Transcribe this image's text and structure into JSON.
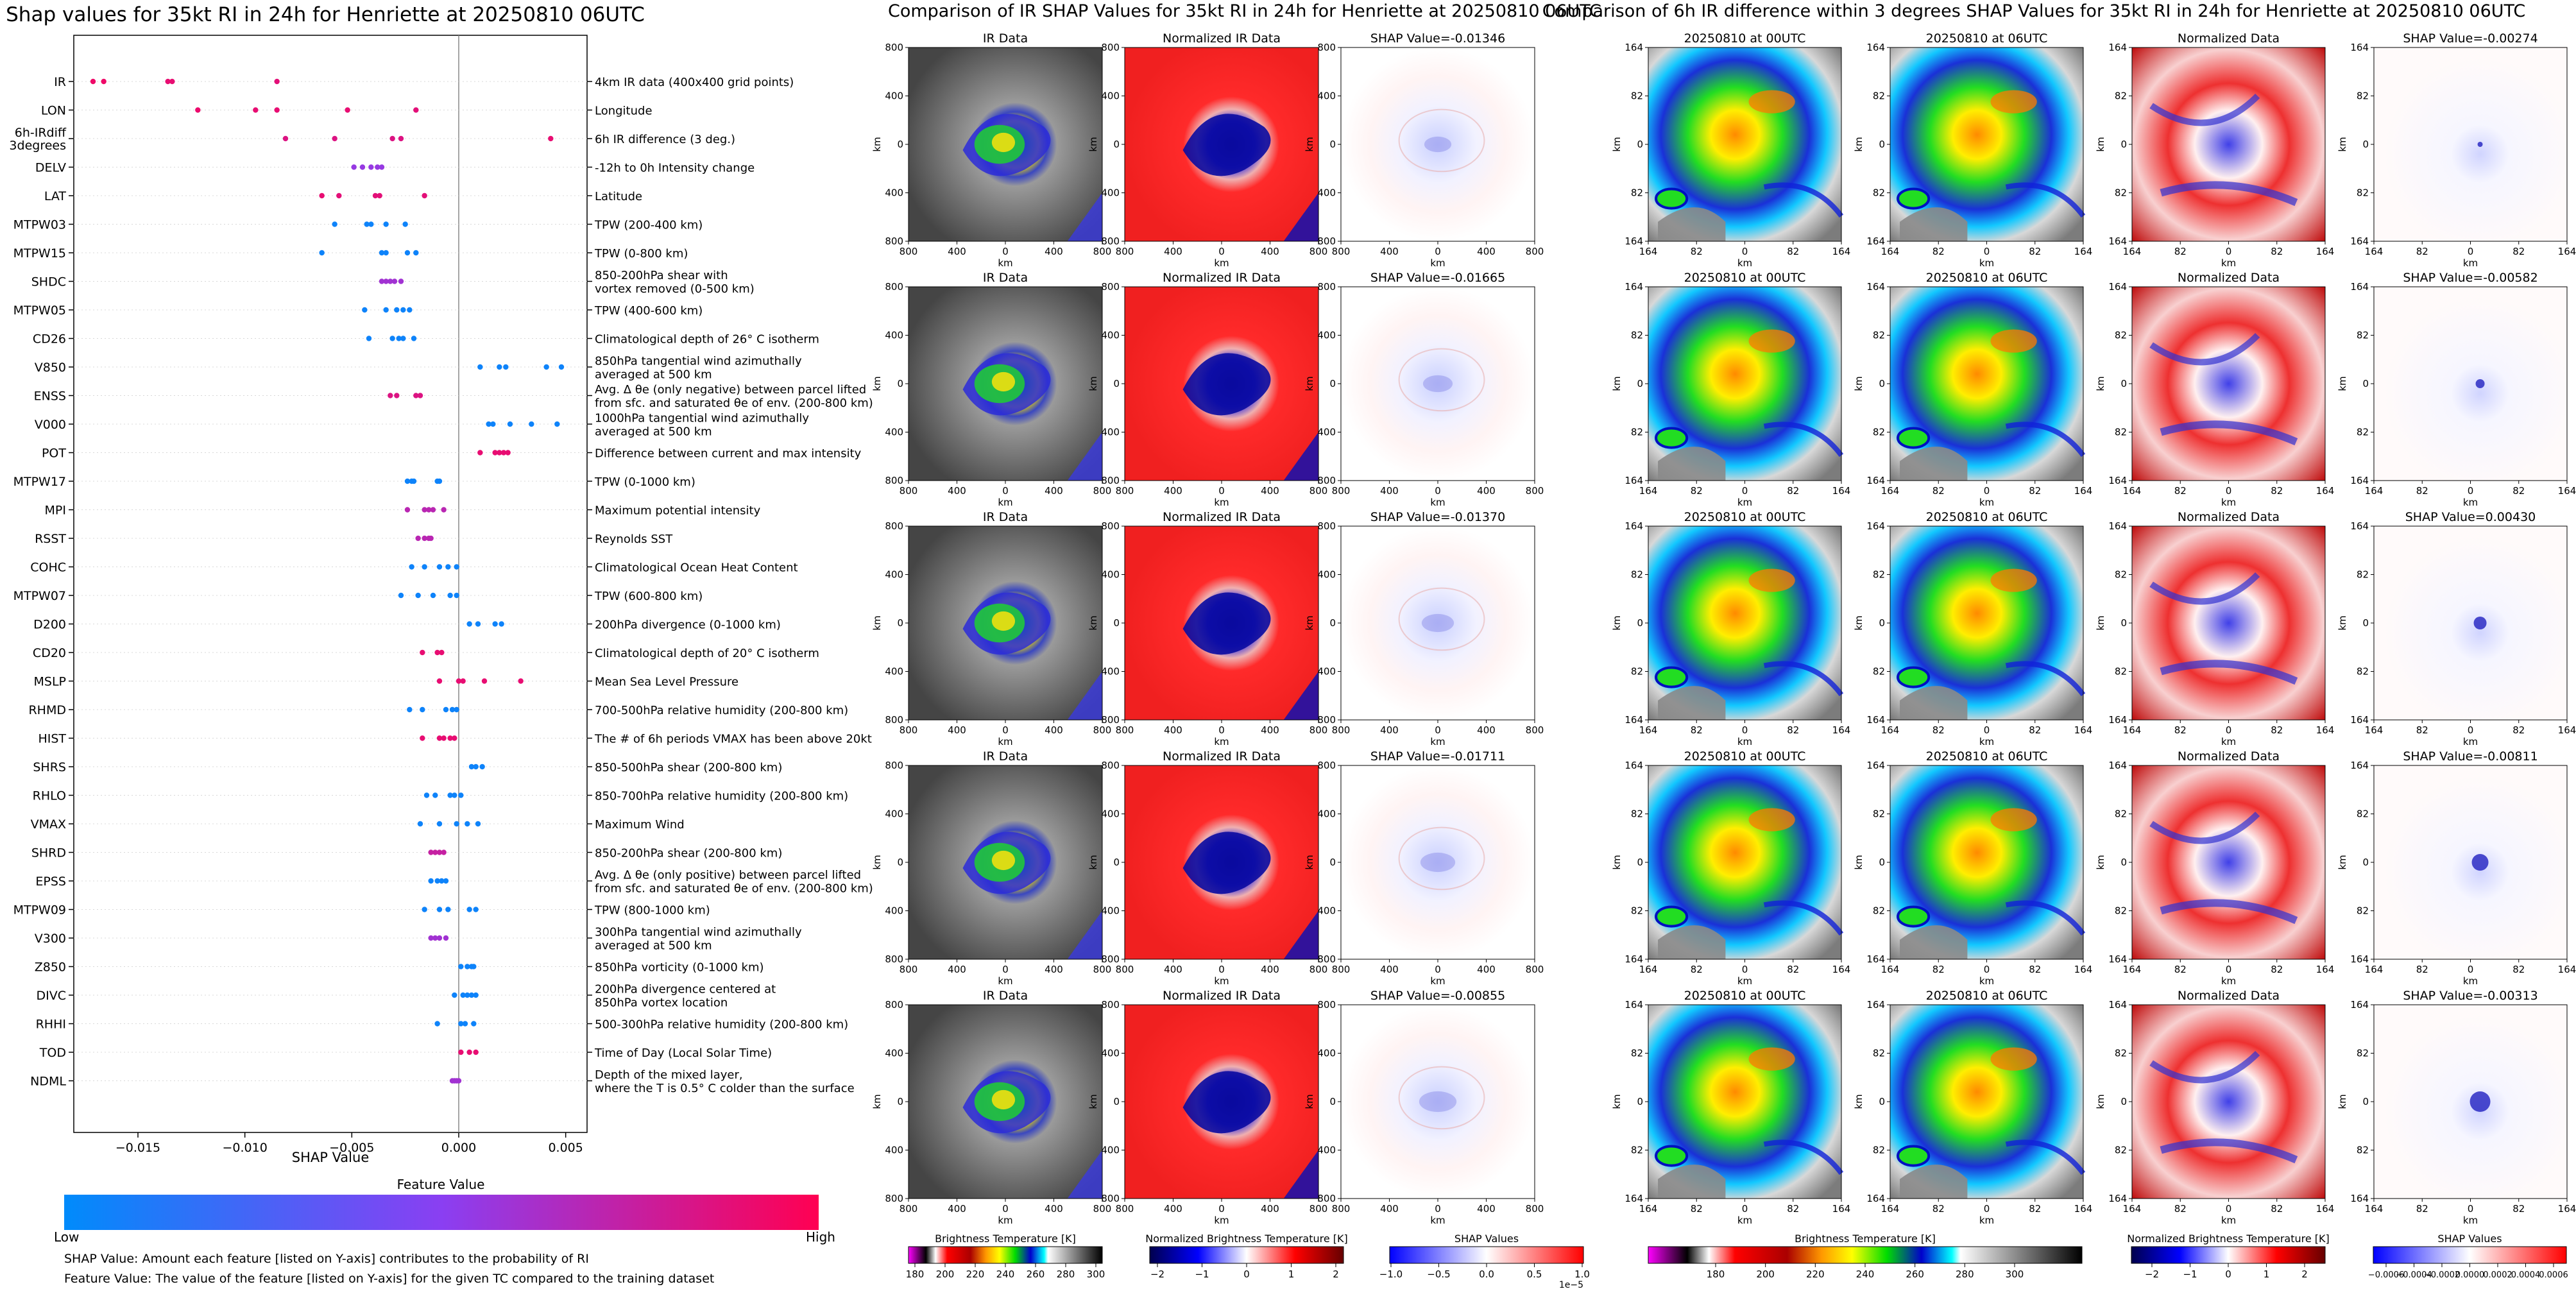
{
  "shap_summary": {
    "title": "Shap values for 35kt RI in 24h for Henriette at 20250810 06UTC",
    "xlabel": "SHAP Value",
    "colorbar_title": "Feature Value",
    "colorbar_low": "Low",
    "colorbar_high": "High",
    "footnote1": "SHAP Value: Amount each feature [listed on Y-axis] contributes to the probability of RI",
    "footnote2": "Feature Value: The value of the feature [listed on Y-axis] for the given TC compared to the training dataset"
  },
  "ir_panel": {
    "title": "Comparison of IR SHAP Values for 35kt RI in 24h for Henriette at 20250810 06UTC",
    "col_titles": [
      "IR Data",
      "Normalized IR Data"
    ],
    "shap_titles": [
      "SHAP Value=-0.01346",
      "SHAP Value=-0.01665",
      "SHAP Value=-0.01370",
      "SHAP Value=-0.01711",
      "SHAP Value=-0.00855"
    ],
    "x_ticks": [
      "800",
      "400",
      "0",
      "400",
      "800"
    ],
    "y_ticks": [
      "800",
      "400",
      "0",
      "400",
      "800"
    ],
    "axis_label": "km",
    "colorbars": [
      {
        "label": "Brightness Temperature [K]",
        "ticks": [
          "180",
          "200",
          "220",
          "240",
          "260",
          "280",
          "300"
        ]
      },
      {
        "label": "Normalized Brightness Temperature [K]",
        "ticks": [
          "−2",
          "−1",
          "0",
          "1",
          "2"
        ]
      },
      {
        "label": "SHAP Values",
        "ticks": [
          "−1.0",
          "−0.5",
          "0.0",
          "0.5",
          "1.0"
        ],
        "exponent": "1e−5"
      }
    ]
  },
  "diff_panel": {
    "title": "Comparison of 6h IR difference within 3 degrees SHAP Values for 35kt RI in 24h for Henriette at 20250810 06UTC",
    "col_titles": [
      "20250810 at 00UTC",
      "20250810 at 06UTC",
      "Normalized Data"
    ],
    "shap_titles": [
      "SHAP Value=-0.00274",
      "SHAP Value=-0.00582",
      "SHAP Value=0.00430",
      "SHAP Value=-0.00811",
      "SHAP Value=-0.00313"
    ],
    "x_ticks": [
      "164",
      "82",
      "0",
      "82",
      "164"
    ],
    "y_ticks": [
      "164",
      "82",
      "0",
      "82",
      "164"
    ],
    "axis_label": "km",
    "colorbars": [
      {
        "label": "Brightness Temperature [K]",
        "ticks": [
          "180",
          "200",
          "220",
          "240",
          "260",
          "280",
          "300"
        ]
      },
      {
        "label": "Normalized Brightness Temperature [K]",
        "ticks": [
          "−2",
          "−1",
          "0",
          "1",
          "2"
        ]
      },
      {
        "label": "SHAP Values",
        "ticks": [
          "−0.0006",
          "−0.0004",
          "−0.0002",
          "0.0000",
          "0.0002",
          "0.0004",
          "0.0006"
        ]
      }
    ]
  },
  "chart_data": {
    "type": "scatter",
    "subtype": "shap-beeswarm",
    "title": "Shap values for 35kt RI in 24h for Henriette at 20250810 06UTC",
    "xlabel": "SHAP Value",
    "xlim": [
      -0.018,
      0.006
    ],
    "xticks": [
      -0.015,
      -0.01,
      -0.005,
      0.0,
      0.005
    ],
    "xtick_labels": [
      "−0.015",
      "−0.010",
      "−0.005",
      "0.000",
      "0.005"
    ],
    "features": [
      {
        "name": "IR",
        "desc": [
          "4km IR data (400x400 grid points)"
        ],
        "points": [
          [
            -0.0171,
            0.93
          ],
          [
            -0.0166,
            0.93
          ],
          [
            -0.0136,
            0.9
          ],
          [
            -0.0134,
            0.9
          ],
          [
            -0.0085,
            0.88
          ]
        ]
      },
      {
        "name": "LON",
        "desc": [
          "Longitude"
        ],
        "points": [
          [
            -0.0122,
            0.92
          ],
          [
            -0.0095,
            0.9
          ],
          [
            -0.0085,
            0.9
          ],
          [
            -0.0052,
            0.9
          ],
          [
            -0.002,
            0.88
          ]
        ]
      },
      {
        "name": "6h-IRdiff\n3degrees",
        "desc": [
          "6h IR difference (3 deg.)"
        ],
        "points": [
          [
            -0.0081,
            0.85
          ],
          [
            -0.0058,
            0.85
          ],
          [
            -0.0031,
            0.85
          ],
          [
            -0.0027,
            0.85
          ],
          [
            0.0043,
            0.9
          ]
        ]
      },
      {
        "name": "DELV",
        "desc": [
          "-12h to 0h Intensity change"
        ],
        "points": [
          [
            -0.0049,
            0.55
          ],
          [
            -0.0045,
            0.55
          ],
          [
            -0.0041,
            0.55
          ],
          [
            -0.0038,
            0.55
          ],
          [
            -0.0036,
            0.55
          ]
        ]
      },
      {
        "name": "LAT",
        "desc": [
          "Latitude"
        ],
        "points": [
          [
            -0.0064,
            0.9
          ],
          [
            -0.0056,
            0.88
          ],
          [
            -0.0039,
            0.88
          ],
          [
            -0.0037,
            0.88
          ],
          [
            -0.0016,
            0.88
          ]
        ]
      },
      {
        "name": "MTPW03",
        "desc": [
          "TPW (200-400 km)"
        ],
        "points": [
          [
            -0.0058,
            0.05
          ],
          [
            -0.0043,
            0.05
          ],
          [
            -0.0041,
            0.05
          ],
          [
            -0.0034,
            0.05
          ],
          [
            -0.0025,
            0.05
          ]
        ]
      },
      {
        "name": "MTPW15",
        "desc": [
          "TPW (0-800 km)"
        ],
        "points": [
          [
            -0.0064,
            0.05
          ],
          [
            -0.0036,
            0.05
          ],
          [
            -0.0034,
            0.05
          ],
          [
            -0.0024,
            0.05
          ],
          [
            -0.002,
            0.05
          ]
        ]
      },
      {
        "name": "SHDC",
        "desc": [
          "850-200hPa shear with",
          "vortex removed (0-500 km)"
        ],
        "points": [
          [
            -0.0036,
            0.6
          ],
          [
            -0.0034,
            0.6
          ],
          [
            -0.0032,
            0.6
          ],
          [
            -0.003,
            0.6
          ],
          [
            -0.0027,
            0.6
          ]
        ]
      },
      {
        "name": "MTPW05",
        "desc": [
          "TPW (400-600 km)"
        ],
        "points": [
          [
            -0.0044,
            0.05
          ],
          [
            -0.0034,
            0.05
          ],
          [
            -0.0029,
            0.05
          ],
          [
            -0.0026,
            0.05
          ],
          [
            -0.0023,
            0.05
          ]
        ]
      },
      {
        "name": "CD26",
        "desc": [
          "Climatological depth of 26° C isotherm"
        ],
        "points": [
          [
            -0.0042,
            0.05
          ],
          [
            -0.0031,
            0.05
          ],
          [
            -0.0028,
            0.05
          ],
          [
            -0.0026,
            0.05
          ],
          [
            -0.0021,
            0.05
          ]
        ]
      },
      {
        "name": "V850",
        "desc": [
          "850hPa tangential wind azimuthally",
          "averaged at 500 km"
        ],
        "points": [
          [
            0.001,
            0.05
          ],
          [
            0.0019,
            0.05
          ],
          [
            0.0022,
            0.05
          ],
          [
            0.0041,
            0.05
          ],
          [
            0.0048,
            0.05
          ]
        ]
      },
      {
        "name": "ENSS",
        "desc": [
          "Avg. Δ θe (only negative) between parcel lifted",
          "from sfc. and saturated θe of env. (200-800 km)"
        ],
        "points": [
          [
            -0.0032,
            0.85
          ],
          [
            -0.0029,
            0.85
          ],
          [
            -0.002,
            0.85
          ],
          [
            -0.0018,
            0.85
          ]
        ]
      },
      {
        "name": "V000",
        "desc": [
          "1000hPa tangential wind azimuthally",
          "averaged at 500 km"
        ],
        "points": [
          [
            0.0014,
            0.05
          ],
          [
            0.0016,
            0.05
          ],
          [
            0.0024,
            0.05
          ],
          [
            0.0034,
            0.05
          ],
          [
            0.0046,
            0.05
          ]
        ]
      },
      {
        "name": "POT",
        "desc": [
          "Difference between current and max intensity"
        ],
        "points": [
          [
            0.001,
            0.9
          ],
          [
            0.0017,
            0.9
          ],
          [
            0.0019,
            0.9
          ],
          [
            0.0021,
            0.9
          ],
          [
            0.0023,
            0.9
          ]
        ]
      },
      {
        "name": "MTPW17",
        "desc": [
          "TPW (0-1000 km)"
        ],
        "points": [
          [
            -0.0024,
            0.05
          ],
          [
            -0.0022,
            0.05
          ],
          [
            -0.0021,
            0.05
          ],
          [
            -0.001,
            0.05
          ],
          [
            -0.0009,
            0.05
          ]
        ]
      },
      {
        "name": "MPI",
        "desc": [
          "Maximum potential intensity"
        ],
        "points": [
          [
            -0.0024,
            0.7
          ],
          [
            -0.0016,
            0.7
          ],
          [
            -0.0014,
            0.7
          ],
          [
            -0.0012,
            0.7
          ],
          [
            -0.0007,
            0.7
          ]
        ]
      },
      {
        "name": "RSST",
        "desc": [
          "Reynolds SST"
        ],
        "points": [
          [
            -0.0019,
            0.7
          ],
          [
            -0.0016,
            0.7
          ],
          [
            -0.0014,
            0.7
          ],
          [
            -0.0013,
            0.7
          ]
        ]
      },
      {
        "name": "COHC",
        "desc": [
          "Climatological Ocean Heat Content"
        ],
        "points": [
          [
            -0.0022,
            0.05
          ],
          [
            -0.0016,
            0.05
          ],
          [
            -0.0009,
            0.05
          ],
          [
            -0.0005,
            0.05
          ],
          [
            -0.0001,
            0.05
          ]
        ]
      },
      {
        "name": "MTPW07",
        "desc": [
          "TPW (600-800 km)"
        ],
        "points": [
          [
            -0.0027,
            0.05
          ],
          [
            -0.0019,
            0.05
          ],
          [
            -0.0012,
            0.05
          ],
          [
            -0.0004,
            0.05
          ],
          [
            -0.0001,
            0.05
          ]
        ]
      },
      {
        "name": "D200",
        "desc": [
          "200hPa divergence (0-1000 km)"
        ],
        "points": [
          [
            0.0005,
            0.05
          ],
          [
            0.0009,
            0.05
          ],
          [
            0.0017,
            0.05
          ],
          [
            0.002,
            0.05
          ]
        ]
      },
      {
        "name": "CD20",
        "desc": [
          "Climatological depth of 20° C isotherm"
        ],
        "points": [
          [
            -0.0017,
            0.9
          ],
          [
            -0.001,
            0.9
          ],
          [
            -0.0008,
            0.9
          ]
        ]
      },
      {
        "name": "MSLP",
        "desc": [
          "Mean Sea Level Pressure"
        ],
        "points": [
          [
            -0.0009,
            0.9
          ],
          [
            0.0,
            0.9
          ],
          [
            0.0002,
            0.9
          ],
          [
            0.0012,
            0.9
          ],
          [
            0.0029,
            0.9
          ]
        ]
      },
      {
        "name": "RHMD",
        "desc": [
          "700-500hPa relative humidity (200-800 km)"
        ],
        "points": [
          [
            -0.0023,
            0.05
          ],
          [
            -0.0017,
            0.05
          ],
          [
            -0.0006,
            0.05
          ],
          [
            -0.0003,
            0.05
          ],
          [
            -0.0001,
            0.05
          ]
        ]
      },
      {
        "name": "HIST",
        "desc": [
          "The # of 6h periods VMAX has been above 20kt"
        ],
        "points": [
          [
            -0.0017,
            0.9
          ],
          [
            -0.0009,
            0.9
          ],
          [
            -0.0007,
            0.9
          ],
          [
            -0.0004,
            0.9
          ],
          [
            -0.0002,
            0.9
          ]
        ]
      },
      {
        "name": "SHRS",
        "desc": [
          "850-500hPa shear (200-800 km)"
        ],
        "points": [
          [
            0.0006,
            0.05
          ],
          [
            0.0008,
            0.05
          ],
          [
            0.0011,
            0.05
          ]
        ]
      },
      {
        "name": "RHLO",
        "desc": [
          "850-700hPa relative humidity (200-800 km)"
        ],
        "points": [
          [
            -0.0015,
            0.05
          ],
          [
            -0.0011,
            0.05
          ],
          [
            -0.0004,
            0.05
          ],
          [
            -0.0002,
            0.05
          ],
          [
            0.0001,
            0.05
          ]
        ]
      },
      {
        "name": "VMAX",
        "desc": [
          "Maximum Wind"
        ],
        "points": [
          [
            -0.0018,
            0.05
          ],
          [
            -0.0009,
            0.05
          ],
          [
            -0.0001,
            0.05
          ],
          [
            0.0004,
            0.05
          ],
          [
            0.0009,
            0.05
          ]
        ]
      },
      {
        "name": "SHRD",
        "desc": [
          "850-200hPa shear (200-800 km)"
        ],
        "points": [
          [
            -0.0013,
            0.75
          ],
          [
            -0.0011,
            0.75
          ],
          [
            -0.0009,
            0.75
          ],
          [
            -0.0007,
            0.75
          ]
        ]
      },
      {
        "name": "EPSS",
        "desc": [
          "Avg. Δ θe (only positive) between parcel lifted",
          "from sfc. and saturated θe of env. (200-800 km)"
        ],
        "points": [
          [
            -0.0013,
            0.05
          ],
          [
            -0.001,
            0.05
          ],
          [
            -0.0008,
            0.05
          ],
          [
            -0.0006,
            0.05
          ]
        ]
      },
      {
        "name": "MTPW09",
        "desc": [
          "TPW (800-1000 km)"
        ],
        "points": [
          [
            -0.0016,
            0.05
          ],
          [
            -0.0009,
            0.05
          ],
          [
            -0.0005,
            0.05
          ],
          [
            0.0005,
            0.05
          ],
          [
            0.0008,
            0.05
          ]
        ]
      },
      {
        "name": "V300",
        "desc": [
          "300hPa tangential wind azimuthally",
          "averaged at 500 km"
        ],
        "points": [
          [
            -0.0013,
            0.6
          ],
          [
            -0.0011,
            0.6
          ],
          [
            -0.0009,
            0.6
          ],
          [
            -0.0006,
            0.6
          ]
        ]
      },
      {
        "name": "Z850",
        "desc": [
          "850hPa vorticity (0-1000 km)"
        ],
        "points": [
          [
            0.0001,
            0.05
          ],
          [
            0.0004,
            0.05
          ],
          [
            0.0006,
            0.05
          ],
          [
            0.0007,
            0.05
          ]
        ]
      },
      {
        "name": "DIVC",
        "desc": [
          "200hPa divergence centered at",
          "850hPa vortex location"
        ],
        "points": [
          [
            -0.0002,
            0.05
          ],
          [
            0.0002,
            0.05
          ],
          [
            0.0004,
            0.05
          ],
          [
            0.0006,
            0.05
          ],
          [
            0.0008,
            0.05
          ]
        ]
      },
      {
        "name": "RHHI",
        "desc": [
          "500-300hPa relative humidity (200-800 km)"
        ],
        "points": [
          [
            -0.001,
            0.05
          ],
          [
            0.0001,
            0.05
          ],
          [
            0.0003,
            0.05
          ],
          [
            0.0007,
            0.05
          ]
        ]
      },
      {
        "name": "TOD",
        "desc": [
          "Time of Day (Local Solar Time)"
        ],
        "points": [
          [
            0.0001,
            0.9
          ],
          [
            0.0005,
            0.9
          ],
          [
            0.0008,
            0.9
          ]
        ]
      },
      {
        "name": "NDML",
        "desc": [
          "Depth of the mixed layer,",
          "where the T is 0.5° C colder than the surface"
        ],
        "points": [
          [
            -0.0003,
            0.6
          ],
          [
            -0.0002,
            0.6
          ],
          [
            -0.0001,
            0.6
          ],
          [
            0.0,
            0.6
          ]
        ]
      }
    ]
  },
  "colors": {
    "low": "#1e88e5",
    "mid": "#8a3ff2",
    "high": "#ff0d57"
  }
}
